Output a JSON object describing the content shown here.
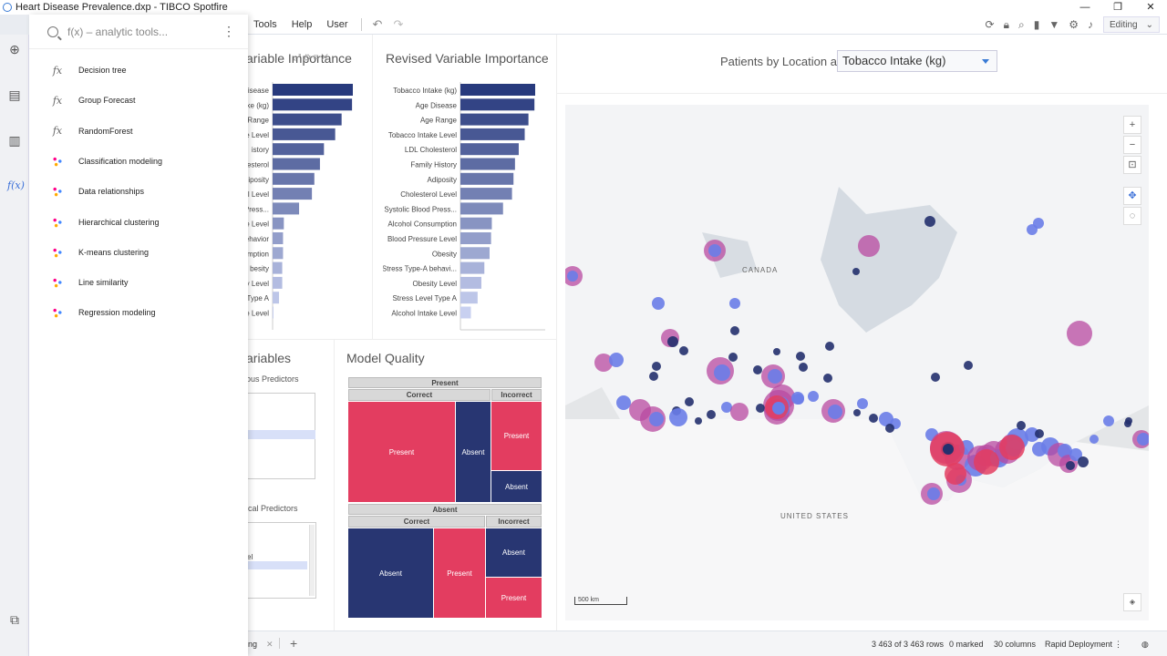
{
  "window": {
    "title": "Heart Disease Prevalence.dxp - TIBCO Spotfire"
  },
  "menu": {
    "items": [
      "Tools",
      "Help",
      "User"
    ],
    "mode": "Editing"
  },
  "tools_panel": {
    "search_placeholder": "f(x) – analytic tools...",
    "items": [
      {
        "label": "Decision tree",
        "icon": "fx-icon"
      },
      {
        "label": "Group Forecast",
        "icon": "fx-icon"
      },
      {
        "label": "RandomForest",
        "icon": "fx-icon"
      },
      {
        "label": "Classification modeling",
        "icon": "scatter-icon"
      },
      {
        "label": "Data relationships",
        "icon": "scatter-icon"
      },
      {
        "label": "Hierarchical clustering",
        "icon": "tree-icon"
      },
      {
        "label": "K-means clustering",
        "icon": "scatter-icon"
      },
      {
        "label": "Line similarity",
        "icon": "lines-icon"
      },
      {
        "label": "Regression modeling",
        "icon": "scatter-icon"
      }
    ]
  },
  "var_importance": {
    "title_partial": "ariable Importance",
    "labels_partial": [
      "isease",
      "ake (kg)",
      "Range",
      "e Level",
      "istory",
      "esterol",
      "iposity",
      "l Level",
      "Press...",
      "e Level",
      "ehavior",
      "mption",
      "besity",
      "y Level",
      "Type A",
      "e Level"
    ],
    "values": [
      1.0,
      0.99,
      0.86,
      0.78,
      0.64,
      0.59,
      0.52,
      0.49,
      0.33,
      0.14,
      0.13,
      0.13,
      0.12,
      0.12,
      0.08,
      0.01
    ]
  },
  "revised_importance": {
    "title": "Revised Variable Importance",
    "labels": [
      "Tobacco Intake (kg)",
      "Age Disease",
      "Age Range",
      "Tobacco Intake Level",
      "LDL Cholesterol",
      "Family History",
      "Adiposity",
      "Cholesterol Level",
      "Systolic Blood Press...",
      "Alcohol Consumption",
      "Blood Pressure Level",
      "Obesity",
      "Stress Type-A behavi...",
      "Obesity Level",
      "Stress Level Type A",
      "Alcohol Intake Level"
    ],
    "values": [
      1.0,
      0.99,
      0.91,
      0.86,
      0.78,
      0.73,
      0.71,
      0.69,
      0.57,
      0.42,
      0.41,
      0.39,
      0.32,
      0.28,
      0.23,
      0.14
    ]
  },
  "variables_panel": {
    "title_partial": "ariables",
    "continuous_label": "ous Predictors",
    "categorical_label": "ical Predictors",
    "cat_item": "el"
  },
  "model_quality": {
    "title": "Model Quality",
    "present_header": "Present",
    "absent_header": "Absent",
    "correct": "Correct",
    "incorrect": "Incorrect",
    "present": "Present",
    "absent": "Absent"
  },
  "map_panel": {
    "title": "Patients by Location and",
    "dropdown_value": "Tobacco Intake (kg)",
    "canada_label": "CANADA",
    "us_label": "UNITED STATES",
    "scale_label": "500 km"
  },
  "status": {
    "tab_partial": "ing",
    "rows": "3 463 of 3 463 rows",
    "marked": "0 marked",
    "columns": "30 columns",
    "deployment": "Rapid Deployment"
  },
  "colors": {
    "present": "#e33d60",
    "absent": "#283672",
    "bar_dark": "#283a7d",
    "bar_light": "#c5cdf0",
    "map_pink": "#b84aa0",
    "map_blue": "#6a7de8",
    "map_dark": "#24306e"
  }
}
